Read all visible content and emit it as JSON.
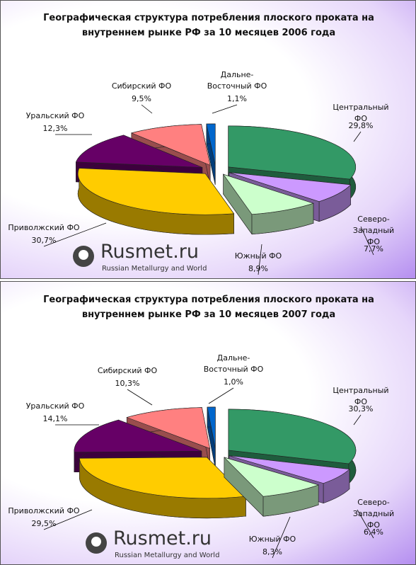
{
  "logo": {
    "name": "Rusmet.ru",
    "tagline": "Russian Metallurgy and World"
  },
  "chart_data": [
    {
      "type": "pie",
      "title": "Географическая структура потребления плоского проката на внутреннем рынке РФ за 10 месяцев 2006 года",
      "categories": [
        "Центральный ФО",
        "Северо-\nЗападный ФО",
        "Южный ФО",
        "Приволжский ФО",
        "Уральский ФО",
        "Сибирский ФО",
        "Дальне-\nВосточный ФО"
      ],
      "values": [
        29.8,
        7.7,
        8.9,
        30.7,
        12.3,
        9.5,
        1.1
      ],
      "value_labels": [
        "29,8%",
        "7,7%",
        "8,9%",
        "30,7%",
        "12,3%",
        "9,5%",
        "1,1%"
      ],
      "colors": [
        "#339966",
        "#cc99ff",
        "#ccffcc",
        "#ffcc00",
        "#660066",
        "#ff8080",
        "#0066cc"
      ]
    },
    {
      "type": "pie",
      "title": "Географическая структура потребления плоского проката на внутреннем рынке РФ за 10 месяцев 2007 года",
      "categories": [
        "Центральный ФО",
        "Северо-\nЗападный ФО",
        "Южный ФО",
        "Приволжский ФО",
        "Уральский ФО",
        "Сибирский ФО",
        "Дальне-\nВосточный ФО"
      ],
      "values": [
        30.3,
        6.4,
        8.3,
        29.5,
        14.1,
        10.3,
        1.0
      ],
      "value_labels": [
        "30,3%",
        "6,4%",
        "8,3%",
        "29,5%",
        "14,1%",
        "10,3%",
        "1,0%"
      ],
      "colors": [
        "#339966",
        "#cc99ff",
        "#ccffcc",
        "#ffcc00",
        "#660066",
        "#ff8080",
        "#0066cc"
      ]
    }
  ]
}
